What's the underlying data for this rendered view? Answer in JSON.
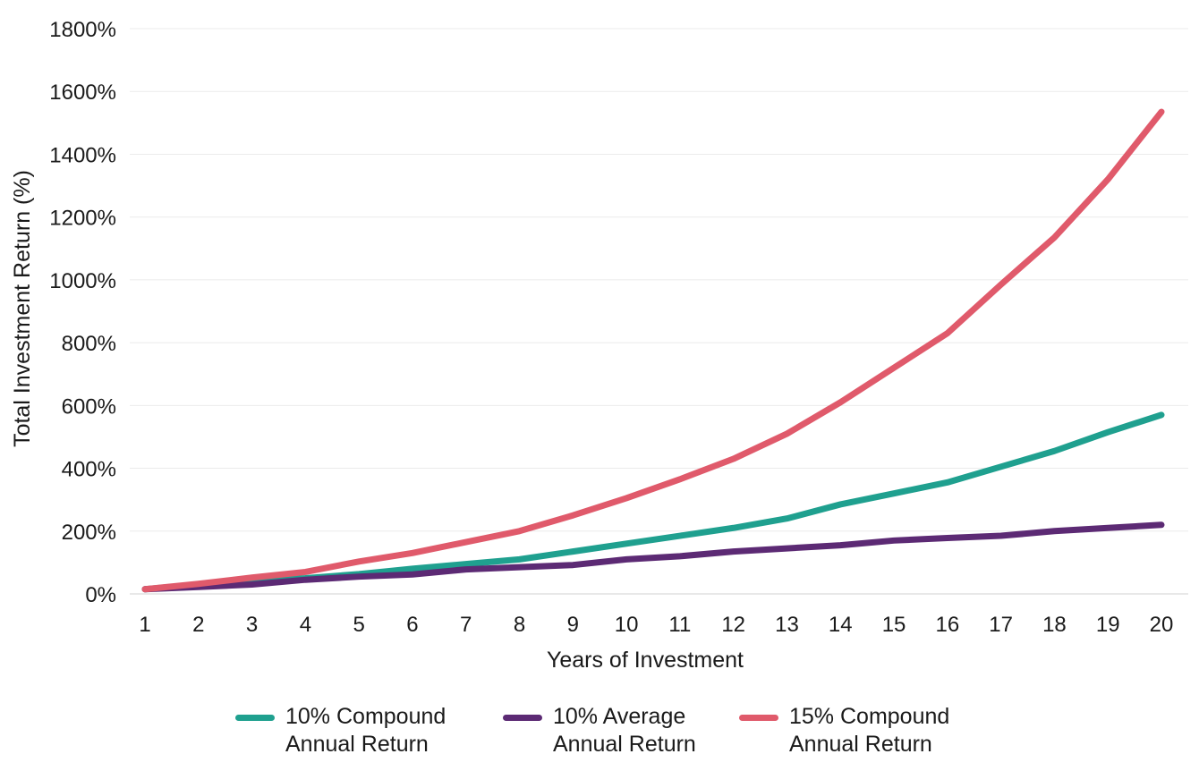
{
  "chart_data": {
    "type": "line",
    "xlabel": "Years of Investment",
    "ylabel": "Total Investment Return (%)",
    "ylim": [
      0,
      1800
    ],
    "yticks": [
      0,
      200,
      400,
      600,
      800,
      1000,
      1200,
      1400,
      1600,
      1800
    ],
    "ytick_labels": [
      "0%",
      "200%",
      "400%",
      "600%",
      "800%",
      "1000%",
      "1200%",
      "1400%",
      "1600%",
      "1800%"
    ],
    "x": [
      1,
      2,
      3,
      4,
      5,
      6,
      7,
      8,
      9,
      10,
      11,
      12,
      13,
      14,
      15,
      16,
      17,
      18,
      19,
      20
    ],
    "grid": "horizontal",
    "legend_position": "bottom",
    "series": [
      {
        "name": "10% Compound\nAnnual Return",
        "color": "#1fa08f",
        "values": [
          15,
          30,
          45,
          50,
          63,
          80,
          95,
          110,
          135,
          160,
          185,
          210,
          240,
          285,
          320,
          355,
          405,
          455,
          515,
          570
        ]
      },
      {
        "name": "10% Average\nAnnual Return",
        "color": "#5c2a74",
        "values": [
          15,
          22,
          30,
          45,
          55,
          62,
          78,
          85,
          92,
          110,
          120,
          135,
          145,
          155,
          170,
          178,
          185,
          200,
          210,
          220
        ]
      },
      {
        "name": "15% Compound\nAnnual Return",
        "color": "#e05a6b",
        "values": [
          15,
          32,
          52,
          70,
          103,
          130,
          165,
          200,
          250,
          305,
          365,
          430,
          510,
          610,
          720,
          830,
          985,
          1135,
          1320,
          1535
        ]
      }
    ]
  }
}
